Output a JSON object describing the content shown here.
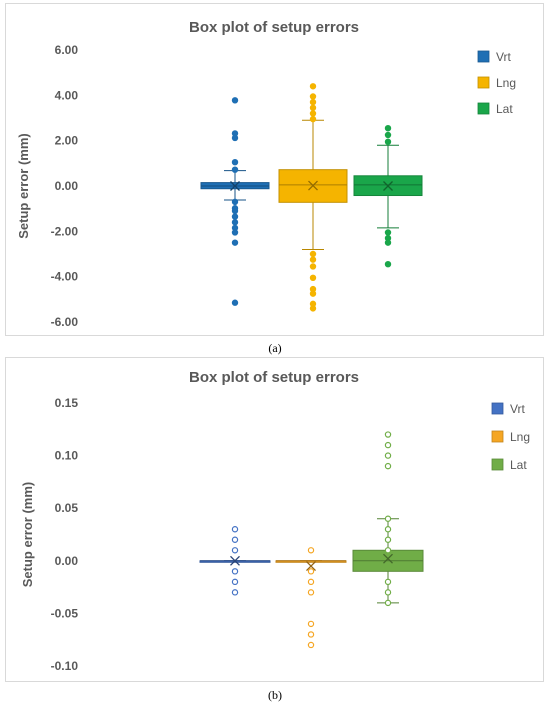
{
  "charts": [
    {
      "caption": "(a)",
      "chart_data": {
        "type": "box",
        "title": "Box plot of setup errors",
        "ylabel": "Setup error (mm)",
        "ylim": [
          -6,
          6
        ],
        "yticks": [
          6,
          4,
          2,
          0,
          -2,
          -4,
          -6
        ],
        "ytick_labels": [
          "6.00",
          "4.00",
          "2.00",
          "0.00",
          "-2.00",
          "-4.00",
          "-6.00"
        ],
        "legend_position": "right",
        "series": [
          {
            "name": "Vrt",
            "color": "#1f6fb4",
            "q1": -0.12,
            "median": 0.0,
            "q3": 0.15,
            "mean": 0.0,
            "whisker_low": -0.62,
            "whisker_high": 0.68,
            "outliers": [
              3.78,
              2.32,
              2.12,
              1.05,
              0.72,
              -0.7,
              -0.98,
              -1.1,
              -1.35,
              -1.6,
              -1.85,
              -2.05,
              -2.5,
              -5.15
            ]
          },
          {
            "name": "Lng",
            "color": "#f5b400",
            "q1": -0.72,
            "median": 0.05,
            "q3": 0.72,
            "mean": 0.02,
            "whisker_low": -2.8,
            "whisker_high": 2.9,
            "outliers": [
              4.4,
              3.95,
              3.7,
              3.45,
              3.2,
              2.95,
              -3.0,
              -3.25,
              -3.55,
              -4.05,
              -4.55,
              -4.75,
              -5.2,
              -5.4
            ]
          },
          {
            "name": "Lat",
            "color": "#1aa64a",
            "q1": -0.42,
            "median": 0.05,
            "q3": 0.45,
            "mean": 0.0,
            "whisker_low": -1.85,
            "whisker_high": 1.8,
            "outliers": [
              2.55,
              2.25,
              1.95,
              -2.05,
              -2.3,
              -2.5,
              -3.45
            ]
          }
        ]
      }
    },
    {
      "caption": "(b)",
      "chart_data": {
        "type": "box",
        "title": "Box plot of setup errors",
        "ylabel": "Setup error (mm)",
        "ylim": [
          -0.1,
          0.15
        ],
        "yticks": [
          0.15,
          0.1,
          0.05,
          0.0,
          -0.05,
          -0.1
        ],
        "ytick_labels": [
          "0.15",
          "0.10",
          "0.05",
          "0.00",
          "-0.05",
          "-0.10"
        ],
        "legend_position": "right",
        "series": [
          {
            "name": "Vrt",
            "color": "#4472c4",
            "q1": 0.0,
            "median": 0.0,
            "q3": 0.0,
            "mean": 0.0,
            "whisker_low": 0.0,
            "whisker_high": 0.0,
            "outliers": [
              0.03,
              0.02,
              0.01,
              -0.01,
              -0.02,
              -0.03
            ]
          },
          {
            "name": "Lng",
            "color": "#f5a623",
            "q1": 0.0,
            "median": 0.0,
            "q3": 0.0,
            "mean": -0.005,
            "whisker_low": 0.0,
            "whisker_high": 0.0,
            "outliers": [
              0.01,
              -0.01,
              -0.02,
              -0.03,
              -0.06,
              -0.07,
              -0.08
            ]
          },
          {
            "name": "Lat",
            "color": "#70ad47",
            "q1": -0.01,
            "median": 0.0,
            "q3": 0.01,
            "mean": 0.002,
            "whisker_low": -0.04,
            "whisker_high": 0.04,
            "outliers": [
              0.12,
              0.11,
              0.1,
              0.09,
              0.04,
              0.03,
              0.02,
              0.01,
              -0.02,
              -0.03,
              -0.04
            ]
          }
        ]
      }
    }
  ]
}
